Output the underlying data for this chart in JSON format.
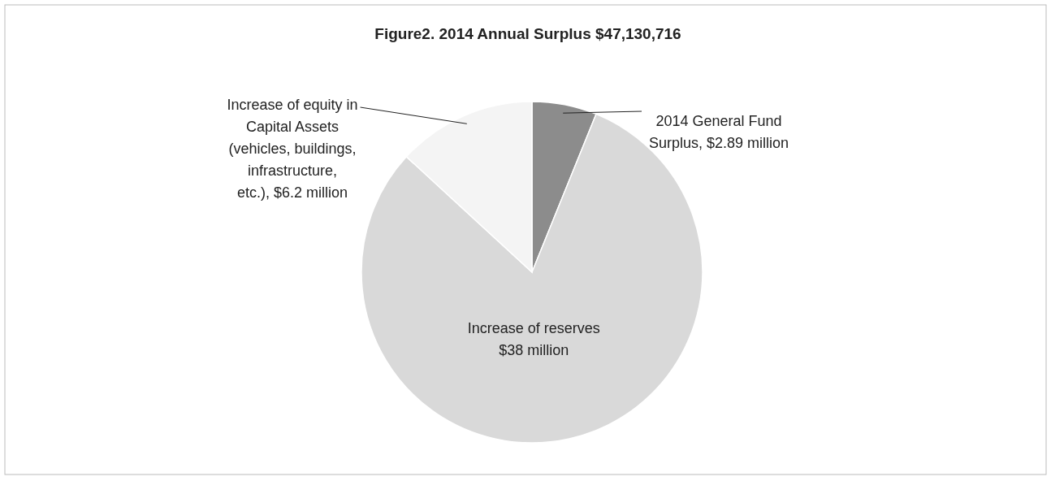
{
  "chart_data": {
    "type": "pie",
    "title": "Figure2. 2014 Annual Surplus $47,130,716",
    "categories": [
      "2014 General Fund Surplus",
      "Increase of reserves",
      "Increase of equity in Capital Assets (vehicles, buildings, infrastructure, etc.)"
    ],
    "values": [
      2.89,
      38,
      6.2
    ],
    "value_labels": [
      "$2.89 million",
      "$38 million",
      "$6.2 million"
    ],
    "colors": [
      "#8c8c8c",
      "#d9d9d9",
      "#f4f4f4"
    ]
  }
}
